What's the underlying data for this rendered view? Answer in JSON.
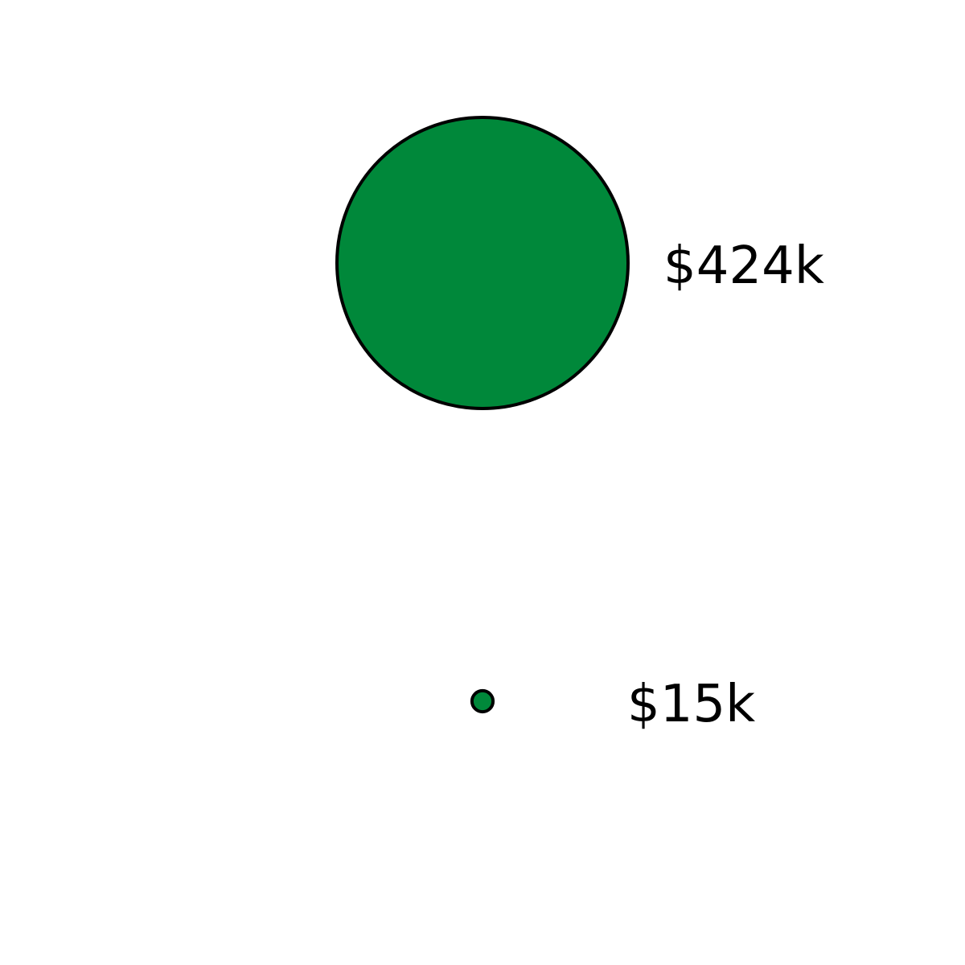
{
  "chart_data": {
    "type": "bubble",
    "values": [
      424000,
      15000
    ],
    "value_labels": [
      "$424k",
      "$15k"
    ],
    "color": "#00883a"
  }
}
